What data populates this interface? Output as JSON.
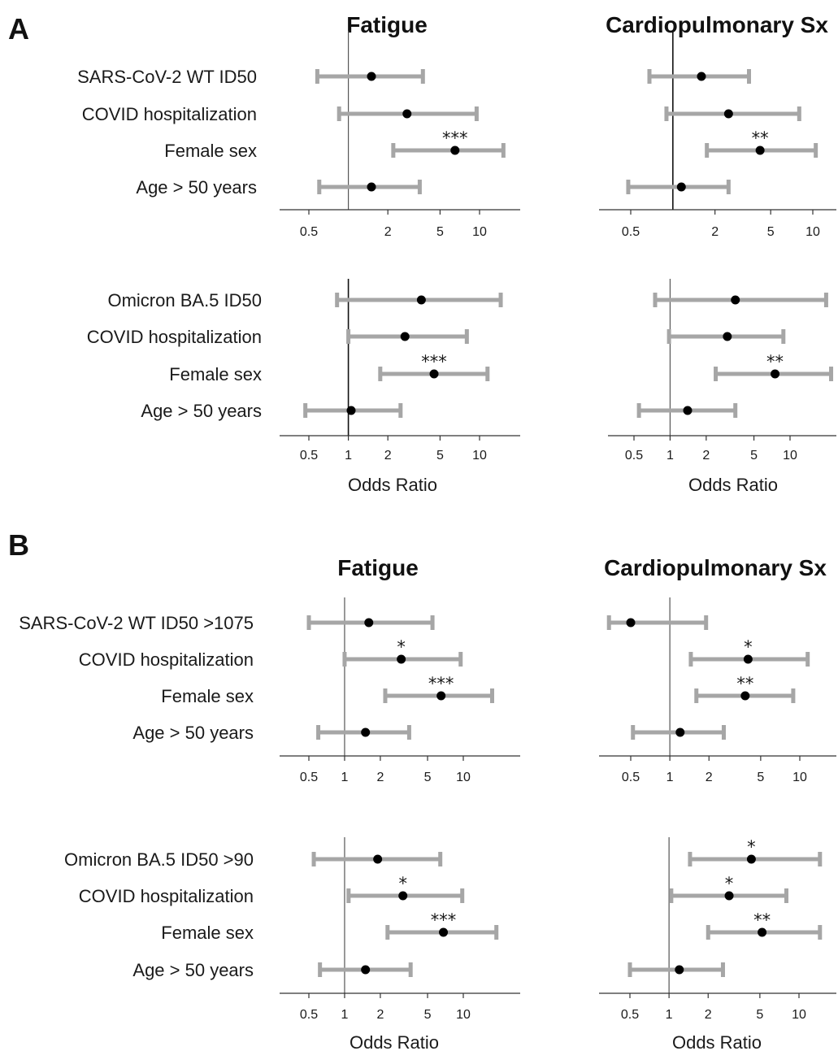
{
  "figure": {
    "panel_labels": [
      "A",
      "B"
    ],
    "x_axis_title": "Odds Ratio",
    "x_scale": "log",
    "colors": {
      "ci_bar": "#a6a6a6",
      "point": "#000000",
      "ref_line": "#555555",
      "axis": "#333333"
    },
    "column_titles": [
      "Fatigue",
      "Cardiopulmonary Sx"
    ]
  },
  "chart_data": [
    {
      "type": "forest",
      "panel": "A",
      "title": "Fatigue",
      "xlabel": "",
      "xlim": [
        0.32,
        16
      ],
      "ticks": [
        0.5,
        2,
        5,
        10
      ],
      "tick_labels": [
        "0.5",
        "2",
        "5",
        "10"
      ],
      "rows": [
        {
          "label": "SARS-CoV-2 WT ID50",
          "or": 1.5,
          "lo": 0.58,
          "hi": 3.7,
          "sig": ""
        },
        {
          "label": "COVID hospitalization",
          "or": 2.8,
          "lo": 0.85,
          "hi": 9.5,
          "sig": ""
        },
        {
          "label": "Female sex",
          "or": 6.5,
          "lo": 2.2,
          "hi": 15.2,
          "sig": "***"
        },
        {
          "label": "Age > 50 years",
          "or": 1.5,
          "lo": 0.6,
          "hi": 3.5,
          "sig": ""
        }
      ]
    },
    {
      "type": "forest",
      "panel": "A",
      "title": "Cardiopulmonary Sx",
      "xlabel": "",
      "xlim": [
        0.32,
        16
      ],
      "ticks": [
        0.5,
        2,
        5,
        10
      ],
      "tick_labels": [
        "0.5",
        "2",
        "5",
        "10"
      ],
      "rows": [
        {
          "label": "SARS-CoV-2 WT ID50",
          "or": 1.6,
          "lo": 0.68,
          "hi": 3.5,
          "sig": ""
        },
        {
          "label": "COVID hospitalization",
          "or": 2.5,
          "lo": 0.9,
          "hi": 8.0,
          "sig": ""
        },
        {
          "label": "Female sex",
          "or": 4.2,
          "lo": 1.75,
          "hi": 10.5,
          "sig": "**"
        },
        {
          "label": "Age > 50 years",
          "or": 1.15,
          "lo": 0.48,
          "hi": 2.5,
          "sig": ""
        }
      ]
    },
    {
      "type": "forest",
      "panel": "A",
      "title": "",
      "xlabel": "Odds Ratio",
      "xlim": [
        0.32,
        16
      ],
      "ticks": [
        0.5,
        1,
        2,
        5,
        10
      ],
      "tick_labels": [
        "0.5",
        "1",
        "2",
        "5",
        "10"
      ],
      "rows": [
        {
          "label": "Omicron BA.5 ID50",
          "or": 3.6,
          "lo": 0.82,
          "hi": 14.5,
          "sig": ""
        },
        {
          "label": "COVID hospitalization",
          "or": 2.7,
          "lo": 1.0,
          "hi": 8.0,
          "sig": ""
        },
        {
          "label": "Female sex",
          "or": 4.5,
          "lo": 1.75,
          "hi": 11.5,
          "sig": "***"
        },
        {
          "label": "Age > 50 years",
          "or": 1.05,
          "lo": 0.47,
          "hi": 2.5,
          "sig": ""
        }
      ]
    },
    {
      "type": "forest",
      "panel": "A",
      "title": "",
      "xlabel": "Odds Ratio",
      "xlim": [
        0.32,
        22
      ],
      "ticks": [
        0.5,
        1,
        2,
        5,
        10
      ],
      "tick_labels": [
        "0.5",
        "1",
        "2",
        "5",
        "10"
      ],
      "rows": [
        {
          "label": "Omicron BA.5 ID50",
          "or": 3.5,
          "lo": 0.75,
          "hi": 20.0,
          "sig": ""
        },
        {
          "label": "COVID hospitalization",
          "or": 3.0,
          "lo": 0.98,
          "hi": 8.8,
          "sig": ""
        },
        {
          "label": "Female sex",
          "or": 7.5,
          "lo": 2.4,
          "hi": 22.0,
          "sig": "**"
        },
        {
          "label": "Age > 50 years",
          "or": 1.4,
          "lo": 0.55,
          "hi": 3.5,
          "sig": ""
        }
      ]
    },
    {
      "type": "forest",
      "panel": "B",
      "title": "Fatigue",
      "xlabel": "",
      "xlim": [
        0.32,
        16
      ],
      "ticks": [
        0.5,
        1,
        2,
        5,
        10
      ],
      "tick_labels": [
        "0.5",
        "1",
        "2",
        "5",
        "10"
      ],
      "rows": [
        {
          "label": "SARS-CoV-2 WT ID50 >1075",
          "or": 1.6,
          "lo": 0.5,
          "hi": 5.5,
          "sig": ""
        },
        {
          "label": "COVID hospitalization",
          "or": 3.0,
          "lo": 1.0,
          "hi": 9.5,
          "sig": "*"
        },
        {
          "label": "Female sex",
          "or": 6.5,
          "lo": 2.2,
          "hi": 17.5,
          "sig": "***"
        },
        {
          "label": "Age > 50 years",
          "or": 1.5,
          "lo": 0.6,
          "hi": 3.5,
          "sig": ""
        }
      ]
    },
    {
      "type": "forest",
      "panel": "B",
      "title": "Cardiopulmonary Sx",
      "xlabel": "",
      "xlim": [
        0.32,
        16
      ],
      "ticks": [
        0.5,
        1,
        2,
        5,
        10
      ],
      "tick_labels": [
        "0.5",
        "1",
        "2",
        "5",
        "10"
      ],
      "rows": [
        {
          "label": "SARS-CoV-2 WT ID50 >1075",
          "or": 0.5,
          "lo": 0.34,
          "hi": 1.9,
          "sig": ""
        },
        {
          "label": "COVID hospitalization",
          "or": 4.0,
          "lo": 1.45,
          "hi": 11.5,
          "sig": "*"
        },
        {
          "label": "Female sex",
          "or": 3.8,
          "lo": 1.6,
          "hi": 8.9,
          "sig": "**"
        },
        {
          "label": "Age > 50 years",
          "or": 1.2,
          "lo": 0.52,
          "hi": 2.6,
          "sig": ""
        }
      ]
    },
    {
      "type": "forest",
      "panel": "B",
      "title": "",
      "xlabel": "Odds Ratio",
      "xlim": [
        0.32,
        16
      ],
      "ticks": [
        0.5,
        1,
        2,
        5,
        10
      ],
      "tick_labels": [
        "0.5",
        "1",
        "2",
        "5",
        "10"
      ],
      "rows": [
        {
          "label": "Omicron BA.5 ID50 >90",
          "or": 1.9,
          "lo": 0.55,
          "hi": 6.4,
          "sig": ""
        },
        {
          "label": "COVID hospitalization",
          "or": 3.1,
          "lo": 1.08,
          "hi": 9.8,
          "sig": "*"
        },
        {
          "label": "Female sex",
          "or": 6.8,
          "lo": 2.3,
          "hi": 19.0,
          "sig": "***"
        },
        {
          "label": "Age > 50 years",
          "or": 1.5,
          "lo": 0.62,
          "hi": 3.6,
          "sig": ""
        }
      ]
    },
    {
      "type": "forest",
      "panel": "B",
      "title": "",
      "xlabel": "Odds Ratio",
      "xlim": [
        0.32,
        16
      ],
      "ticks": [
        0.5,
        1,
        2,
        5,
        10
      ],
      "tick_labels": [
        "0.5",
        "1",
        "2",
        "5",
        "10"
      ],
      "rows": [
        {
          "label": "",
          "or": 4.3,
          "lo": 1.45,
          "hi": 14.5,
          "sig": "*"
        },
        {
          "label": "",
          "or": 2.9,
          "lo": 1.04,
          "hi": 8.0,
          "sig": "*"
        },
        {
          "label": "",
          "or": 5.2,
          "lo": 2.0,
          "hi": 14.5,
          "sig": "**"
        },
        {
          "label": "",
          "or": 1.2,
          "lo": 0.5,
          "hi": 2.6,
          "sig": ""
        }
      ]
    }
  ]
}
